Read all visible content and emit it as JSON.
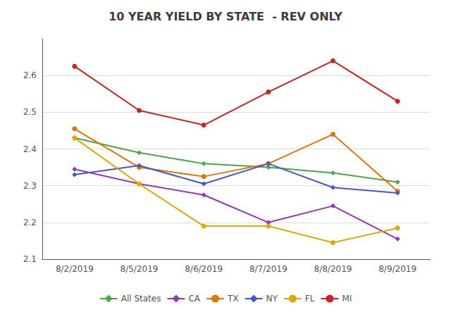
{
  "chart_data": {
    "type": "line",
    "title": "10 YEAR YIELD BY STATE  - REV ONLY",
    "categories": [
      "8/2/2019",
      "8/5/2019",
      "8/6/2019",
      "8/7/2019",
      "8/8/2019",
      "8/9/2019"
    ],
    "series": [
      {
        "name": "All States",
        "color": "#44aa44",
        "marker": "diamond",
        "values": [
          2.43,
          2.39,
          2.36,
          2.35,
          2.335,
          2.31
        ]
      },
      {
        "name": "CA",
        "color": "#9933bb",
        "marker": "diamond",
        "values": [
          2.345,
          2.305,
          2.275,
          2.2,
          2.245,
          2.155
        ]
      },
      {
        "name": "TX",
        "color": "#dd7700",
        "marker": "circle",
        "values": [
          2.455,
          2.35,
          2.325,
          2.36,
          2.44,
          2.285
        ]
      },
      {
        "name": "NY",
        "color": "#4455cc",
        "marker": "diamond",
        "values": [
          2.33,
          2.355,
          2.305,
          2.36,
          2.295,
          2.28
        ]
      },
      {
        "name": "FL",
        "color": "#ddaa00",
        "marker": "circle",
        "values": [
          2.43,
          2.305,
          2.19,
          2.19,
          2.145,
          2.185
        ]
      },
      {
        "name": "MI",
        "color": "#cc2222",
        "marker": "circle",
        "values": [
          2.625,
          2.505,
          2.465,
          2.555,
          2.64,
          2.53
        ]
      }
    ],
    "ylim": [
      2.1,
      2.7
    ],
    "yticks": [
      2.1,
      2.2,
      2.3,
      2.4,
      2.5,
      2.6
    ],
    "grid": true,
    "legend": "bottom"
  }
}
